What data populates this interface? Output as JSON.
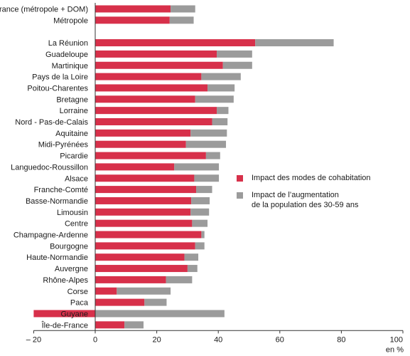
{
  "chart_data": {
    "type": "bar",
    "orientation": "horizontal",
    "stacked": true,
    "categories": [
      "France (métropole + DOM)",
      "Métropole",
      "",
      "La Réunion",
      "Guadeloupe",
      "Martinique",
      "Pays de la Loire",
      "Poitou-Charentes",
      "Bretagne",
      "Lorraine",
      "Nord - Pas-de-Calais",
      "Aquitaine",
      "Midi-Pyrénées",
      "Picardie",
      "Languedoc-Roussillon",
      "Alsace",
      "Franche-Comté",
      "Basse-Normandie",
      "Limousin",
      "Centre",
      "Champagne-Ardenne",
      "Bourgogne",
      "Haute-Normandie",
      "Auvergne",
      "Rhône-Alpes",
      "Corse",
      "Paca",
      "Guyane",
      "Île-de-France"
    ],
    "series": [
      {
        "name": "Impact des modes de cohabitation",
        "color": "#d7304a",
        "values": [
          24.5,
          24.2,
          null,
          52,
          39.5,
          41.5,
          34.5,
          36.5,
          32.5,
          39.5,
          38,
          31,
          29.5,
          36,
          25.7,
          32.2,
          32.8,
          31.2,
          31,
          31.5,
          34.5,
          32.5,
          29,
          30,
          23,
          7,
          16,
          -20,
          9.5
        ]
      },
      {
        "name": "Impact de l’augmentation\nde la population des 30-59 ans",
        "color": "#9b9b9b",
        "values": [
          8,
          7.8,
          null,
          25.5,
          11.5,
          9.5,
          12.8,
          8.8,
          12.5,
          3.8,
          5,
          11.8,
          13,
          4.6,
          14.5,
          8,
          5.2,
          6,
          6,
          5,
          1,
          3,
          4.5,
          3.2,
          8.5,
          17.5,
          7.2,
          42,
          6.2
        ]
      }
    ],
    "xlabel": "en %",
    "xticks": [
      "– 20",
      "0",
      "20",
      "40",
      "60",
      "80",
      "100"
    ],
    "xlim": [
      -20,
      100
    ],
    "grid": false,
    "legend_position": "right"
  }
}
